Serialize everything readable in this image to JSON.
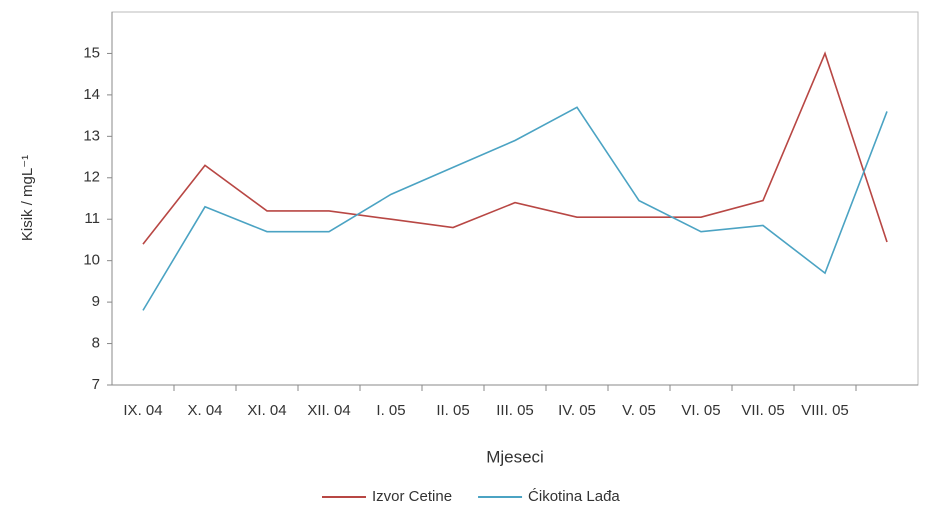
{
  "chart_data": {
    "type": "line",
    "y_label": "Kisik / mgL⁻¹",
    "x_label": "Mjeseci",
    "categories": [
      "IX. 04",
      "X. 04",
      "XI. 04",
      "XII. 04",
      "I. 05",
      "II. 05",
      "III. 05",
      "IV. 05",
      "V. 05",
      "VI. 05",
      "VII. 05",
      "VIII. 05",
      null
    ],
    "series": [
      {
        "name": "Izvor Cetine",
        "color": "#b84744",
        "values": [
          10.4,
          12.3,
          11.2,
          11.2,
          11.0,
          10.8,
          11.4,
          11.05,
          11.05,
          11.05,
          11.45,
          15.0,
          10.45
        ]
      },
      {
        "name": "Ćikotina Lađa",
        "color": "#4ba3c3",
        "values": [
          8.8,
          11.3,
          10.7,
          10.7,
          11.6,
          12.25,
          12.9,
          13.7,
          11.45,
          10.7,
          10.85,
          9.7,
          13.6
        ]
      }
    ],
    "ylim": [
      7,
      16
    ],
    "yticks": [
      7,
      8,
      9,
      10,
      11,
      12,
      13,
      14,
      15
    ],
    "legend": "bottom"
  }
}
